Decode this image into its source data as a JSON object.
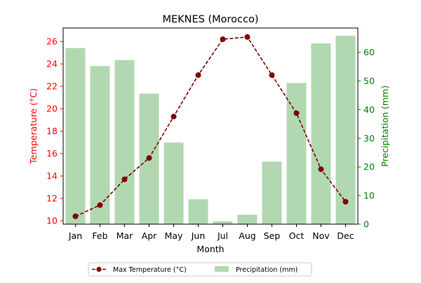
{
  "chart_data": {
    "type": "bar+line",
    "title": "MEKNES (Morocco)",
    "xlabel": "Month",
    "ylabel_left": "Temperature (°C)",
    "ylabel_right": "Precipitation (mm)",
    "categories": [
      "Jan",
      "Feb",
      "Mar",
      "Apr",
      "May",
      "Jun",
      "Jul",
      "Aug",
      "Sep",
      "Oct",
      "Nov",
      "Dec"
    ],
    "ylim_left": [
      9.7,
      27.2
    ],
    "yticks_left": [
      10,
      12,
      14,
      16,
      18,
      20,
      22,
      24,
      26
    ],
    "ylim_right": [
      0,
      68.5
    ],
    "yticks_right": [
      0,
      10,
      20,
      30,
      40,
      50,
      60
    ],
    "grid": false,
    "legend_placement": "bottom-center",
    "series": [
      {
        "name": "Max Temperature (°C)",
        "kind": "line",
        "axis": "left",
        "color": "#800000",
        "line_style": "dashed",
        "marker": "circle",
        "values": [
          10.4,
          11.4,
          13.7,
          15.6,
          19.3,
          23.0,
          26.2,
          26.4,
          23.0,
          19.6,
          14.6,
          11.7
        ]
      },
      {
        "name": "Precipitation (mm)",
        "kind": "bar",
        "axis": "right",
        "color": "#b1d8b1",
        "values": [
          61.5,
          55.2,
          57.3,
          45.6,
          28.5,
          8.7,
          1.0,
          3.3,
          21.8,
          49.3,
          63.1,
          65.8
        ]
      }
    ],
    "colors": {
      "left_axis": "#ff0000",
      "right_axis": "#008000"
    }
  }
}
